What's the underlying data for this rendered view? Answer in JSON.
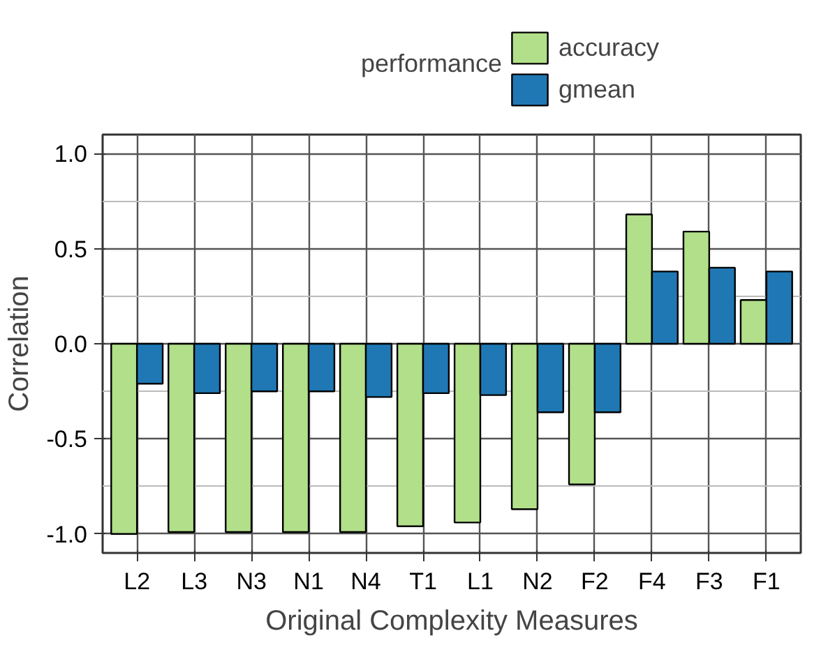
{
  "chart_data": {
    "type": "bar",
    "xlabel": "Original Complexity Measures",
    "ylabel": "Correlation",
    "legend_title": "performance",
    "categories": [
      "L2",
      "L3",
      "N3",
      "N1",
      "N4",
      "T1",
      "L1",
      "N2",
      "F2",
      "F4",
      "F3",
      "F1"
    ],
    "series": [
      {
        "name": "accuracy",
        "color": "#b2df8a",
        "values": [
          -1.0,
          -0.99,
          -0.99,
          -0.99,
          -0.99,
          -0.96,
          -0.94,
          -0.87,
          -0.74,
          0.68,
          0.59,
          0.23
        ]
      },
      {
        "name": "gmean",
        "color": "#1f78b4",
        "values": [
          -0.21,
          -0.26,
          -0.25,
          -0.25,
          -0.28,
          -0.26,
          -0.27,
          -0.36,
          -0.36,
          0.38,
          0.4,
          0.38
        ]
      }
    ],
    "ylim": [
      -1.1,
      1.1
    ],
    "yticks": [
      {
        "value": -1.0,
        "label": "-1.0"
      },
      {
        "value": -0.5,
        "label": "-0.5"
      },
      {
        "value": 0,
        "label": "0.0"
      },
      {
        "value": 0.5,
        "label": "0.5"
      },
      {
        "value": 1.0,
        "label": "1.0"
      }
    ],
    "grid": true,
    "legend": "top"
  }
}
